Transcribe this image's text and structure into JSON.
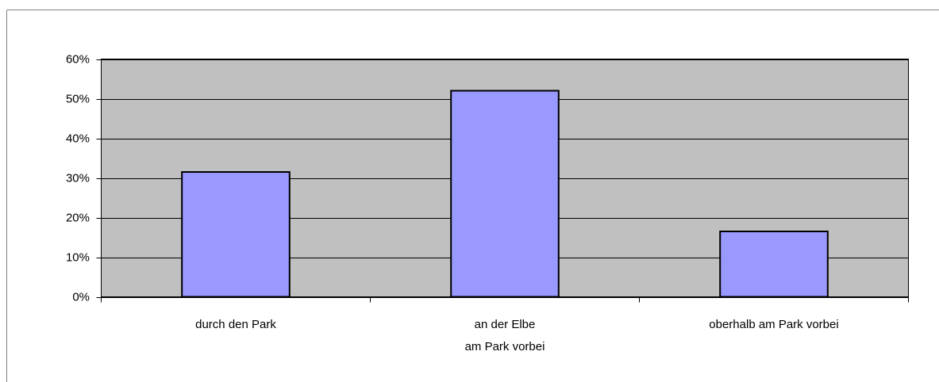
{
  "chart_data": {
    "type": "bar",
    "categories": [
      "durch den Park",
      "an der Elbe\nam Park vorbei",
      "oberhalb am Park vorbei"
    ],
    "values": [
      31.5,
      52,
      16.5
    ],
    "color": "#9999ff",
    "ylim": [
      0,
      60
    ],
    "yticks": [
      {
        "value": 0,
        "label": "0%"
      },
      {
        "value": 10,
        "label": "10%"
      },
      {
        "value": 20,
        "label": "20%"
      },
      {
        "value": 30,
        "label": "30%"
      },
      {
        "value": 40,
        "label": "40%"
      },
      {
        "value": 50,
        "label": "50%"
      },
      {
        "value": 60,
        "label": "60%"
      }
    ],
    "grid": true
  }
}
